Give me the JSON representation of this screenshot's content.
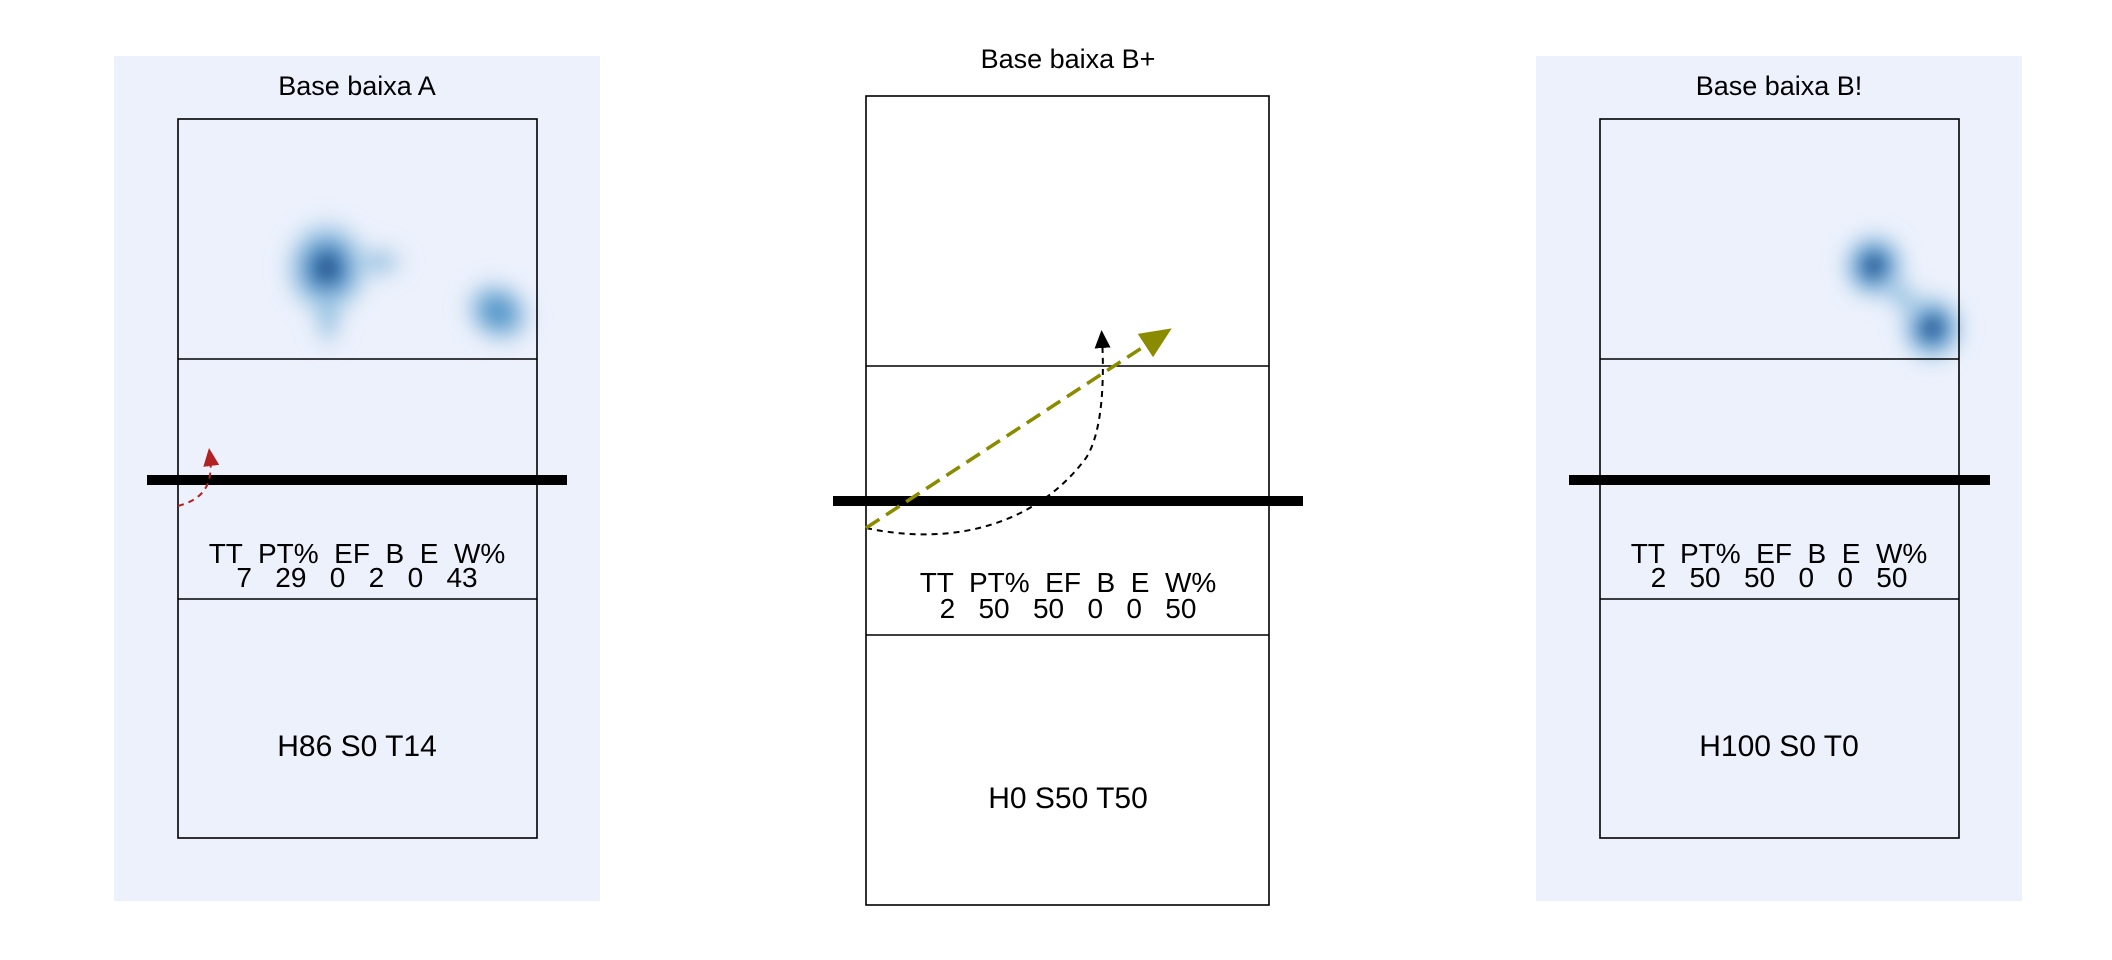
{
  "panels": [
    {
      "title": "Base baixa A",
      "stats_header": "TT  PT%  EF  B  E  W%",
      "stats_values": "7   29   0   2   0   43",
      "distribution": "H86 S0 T14"
    },
    {
      "title": "Base baixa B+",
      "stats_header": "TT  PT%  EF  B  E  W%",
      "stats_values": "2   50   50   0   0   50",
      "distribution": "H0 S50 T50"
    },
    {
      "title": "Base baixa B!",
      "stats_header": "TT  PT%  EF  B  E  W%",
      "stats_values": "2   50   50   0   0   50",
      "distribution": "H100 S0 T0"
    }
  ],
  "colors": {
    "panel_highlight": "#ecf1fc",
    "heat_dark": "#08306b",
    "heat_mid": "#2b7bba",
    "arrow_red": "#b22222",
    "arrow_olive": "#8b8b00",
    "arrow_black": "#000000"
  }
}
